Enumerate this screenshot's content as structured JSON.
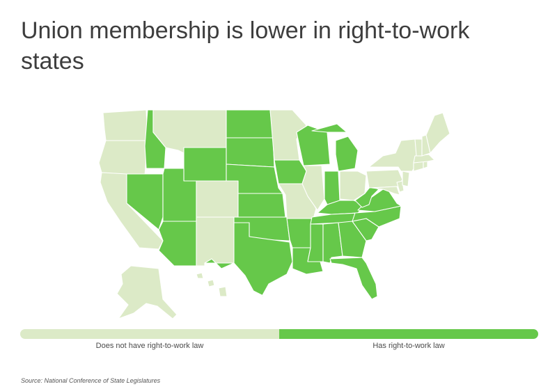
{
  "title": "Union membership is lower in right-to-work states",
  "colors": {
    "no_rtw": "#dceac7",
    "rtw": "#66c84a",
    "border": "#ffffff"
  },
  "legend": {
    "no_rtw_label": "Does not have right-to-work law",
    "rtw_label": "Has right-to-work law"
  },
  "source": "Source:  National Conference of State Legislatures",
  "states": {
    "WA": "no_rtw",
    "OR": "no_rtw",
    "CA": "no_rtw",
    "MT": "no_rtw",
    "CO": "no_rtw",
    "NM": "no_rtw",
    "MN": "no_rtw",
    "MO": "no_rtw",
    "IL": "no_rtw",
    "OH": "no_rtw",
    "PA": "no_rtw",
    "NY": "no_rtw",
    "ME": "no_rtw",
    "VT": "no_rtw",
    "NH": "no_rtw",
    "MA": "no_rtw",
    "CT": "no_rtw",
    "RI": "no_rtw",
    "NJ": "no_rtw",
    "DE": "no_rtw",
    "MD": "no_rtw",
    "AK": "no_rtw",
    "HI": "no_rtw",
    "ID": "rtw",
    "NV": "rtw",
    "UT": "rtw",
    "AZ": "rtw",
    "WY": "rtw",
    "ND": "rtw",
    "SD": "rtw",
    "NE": "rtw",
    "KS": "rtw",
    "OK": "rtw",
    "TX": "rtw",
    "IA": "rtw",
    "AR": "rtw",
    "LA": "rtw",
    "WI": "rtw",
    "MI": "rtw",
    "IN": "rtw",
    "KY": "rtw",
    "TN": "rtw",
    "MS": "rtw",
    "AL": "rtw",
    "GA": "rtw",
    "FL": "rtw",
    "SC": "rtw",
    "NC": "rtw",
    "VA": "rtw",
    "WV": "rtw"
  }
}
